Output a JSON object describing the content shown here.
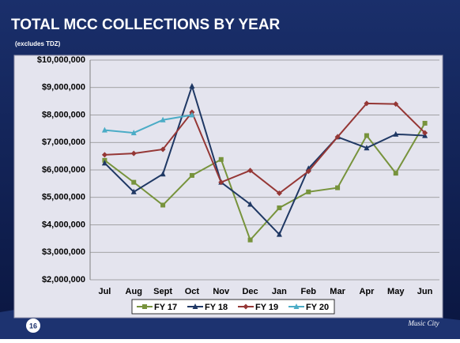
{
  "chart_data": {
    "type": "line",
    "title": "TOTAL MCC COLLECTIONS BY YEAR",
    "subtitle": "(excludes TDZ)",
    "categories": [
      "Jul",
      "Aug",
      "Sept",
      "Oct",
      "Nov",
      "Dec",
      "Jan",
      "Feb",
      "Mar",
      "Apr",
      "May",
      "Jun"
    ],
    "series": [
      {
        "name": "FY 17",
        "color": "#77933c",
        "marker": "square",
        "values": [
          6350000,
          5550000,
          4720000,
          5800000,
          6380000,
          3450000,
          4620000,
          5200000,
          5350000,
          7250000,
          5880000,
          7700000
        ]
      },
      {
        "name": "FY 18",
        "color": "#1f3864",
        "marker": "triangle",
        "values": [
          6250000,
          5200000,
          5850000,
          9050000,
          5550000,
          4750000,
          3650000,
          6050000,
          7200000,
          6800000,
          7300000,
          7250000
        ]
      },
      {
        "name": "FY 19",
        "color": "#953735",
        "marker": "diamond",
        "values": [
          6550000,
          6600000,
          6750000,
          8100000,
          5550000,
          5980000,
          5150000,
          5950000,
          7200000,
          8420000,
          8400000,
          7350000
        ]
      },
      {
        "name": "FY 20",
        "color": "#4bacc6",
        "marker": "triangle",
        "values": [
          7450000,
          7350000,
          7820000,
          8000000,
          null,
          null,
          null,
          null,
          null,
          null,
          null,
          null
        ]
      }
    ],
    "ylim": [
      2000000,
      10000000
    ],
    "yticks": [
      {
        "value": 2000000,
        "label": "$2,000,000"
      },
      {
        "value": 3000000,
        "label": "$3,000,000"
      },
      {
        "value": 4000000,
        "label": "$4,000,000"
      },
      {
        "value": 5000000,
        "label": "$5,000,000"
      },
      {
        "value": 6000000,
        "label": "$6,000,000"
      },
      {
        "value": 7000000,
        "label": "$7,000,000"
      },
      {
        "value": 8000000,
        "label": "$8,000,000"
      },
      {
        "value": 9000000,
        "label": "$9,000,000"
      },
      {
        "value": 10000000,
        "label": "$10,000,000"
      }
    ],
    "grid": true,
    "legend": "bottom"
  },
  "slide": {
    "number": "16",
    "logo": "Music City"
  }
}
